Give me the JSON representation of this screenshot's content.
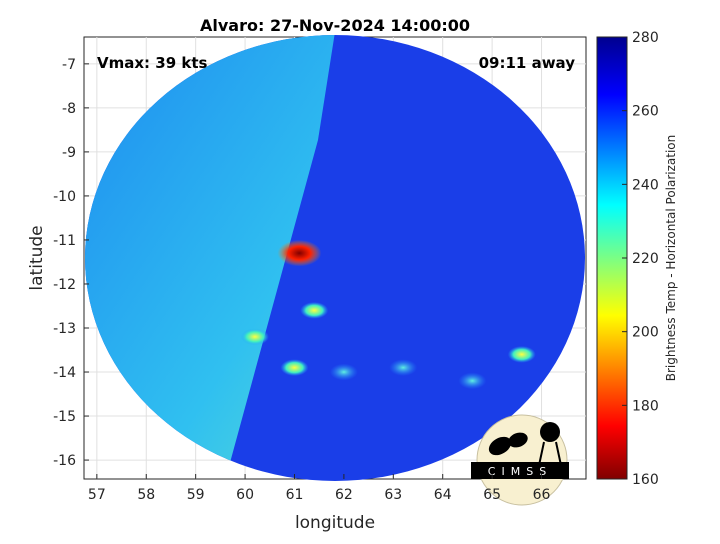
{
  "chart_data": {
    "type": "heatmap",
    "title": "Alvaro: 27-Nov-2024 14:00:00",
    "xlabel": "longitude",
    "ylabel": "latitude",
    "xlim": [
      56.74,
      66.9
    ],
    "ylim": [
      -16.43,
      -6.39
    ],
    "xticks": [
      57,
      58,
      59,
      60,
      61,
      62,
      63,
      64,
      65,
      66
    ],
    "yticks": [
      -7,
      -8,
      -9,
      -10,
      -11,
      -12,
      -13,
      -14,
      -15,
      -16
    ],
    "grid": true,
    "annotations": {
      "left": "Vmax: 39 kts",
      "right": "09:11 away"
    },
    "colorbar": {
      "label": "Brightness Temp - Horizontal Polarization",
      "range": [
        160,
        280
      ],
      "ticks": [
        280,
        260,
        240,
        220,
        200,
        180,
        160
      ],
      "colormap": "jet"
    },
    "features": [
      {
        "lon": 61.1,
        "lat": -11.3,
        "value": 165
      },
      {
        "lon": 65.6,
        "lat": -13.6,
        "value": 195
      },
      {
        "lon": 61.0,
        "lat": -13.9,
        "value": 215
      },
      {
        "lon": 61.4,
        "lat": -12.6,
        "value": 225
      },
      {
        "lon": 60.2,
        "lat": -13.2,
        "value": 220
      },
      {
        "lon": 64.6,
        "lat": -14.2,
        "value": 235
      },
      {
        "lon": 63.2,
        "lat": -13.9,
        "value": 240
      },
      {
        "lon": 62.0,
        "lat": -14.0,
        "value": 240
      }
    ]
  },
  "logo": "CIMSS"
}
